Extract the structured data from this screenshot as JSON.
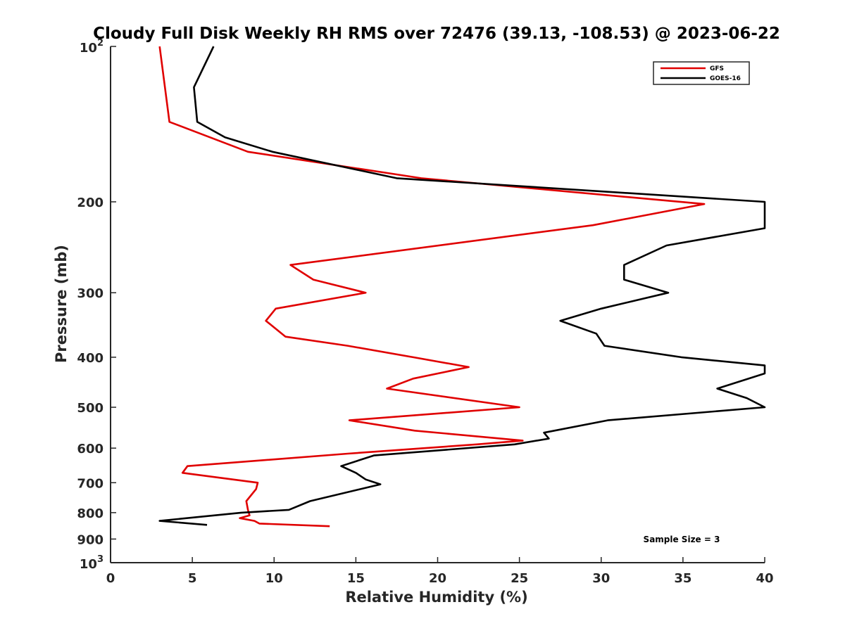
{
  "chart_data": {
    "type": "line",
    "title": "Cloudy Full Disk Weekly RH RMS over 72476 (39.13, -108.53) @ 2023-06-22",
    "xlabel": "Relative Humidity (%)",
    "ylabel": "Pressure (mb)",
    "xlim": [
      0,
      40
    ],
    "ylim": [
      100,
      1000
    ],
    "y_scale": "log",
    "y_reversed": true,
    "grid": false,
    "legend_position": "top-right",
    "x_ticks": [
      "0",
      "5",
      "10",
      "15",
      "20",
      "25",
      "30",
      "35",
      "40"
    ],
    "y_ticks": [
      {
        "value": 200,
        "label": "200"
      },
      {
        "value": 300,
        "label": "300"
      },
      {
        "value": 400,
        "label": "400"
      },
      {
        "value": 500,
        "label": "500"
      },
      {
        "value": 600,
        "label": "600"
      },
      {
        "value": 700,
        "label": "700"
      },
      {
        "value": 800,
        "label": "800"
      },
      {
        "value": 900,
        "label": "900"
      }
    ],
    "y_ticks_pow": [
      {
        "value": 100,
        "base": "10",
        "exp": "2"
      },
      {
        "value": 1000,
        "base": "10",
        "exp": "3"
      }
    ],
    "series": [
      {
        "name": "GFS",
        "color": "#e00000",
        "points": [
          [
            3.0,
            100
          ],
          [
            3.6,
            140
          ],
          [
            8.4,
            160
          ],
          [
            19.0,
            180
          ],
          [
            36.3,
            202
          ],
          [
            29.5,
            222
          ],
          [
            11.0,
            265
          ],
          [
            12.4,
            283
          ],
          [
            15.6,
            300
          ],
          [
            10.1,
            322
          ],
          [
            9.5,
            340
          ],
          [
            10.7,
            365
          ],
          [
            14.5,
            380
          ],
          [
            18.5,
            400
          ],
          [
            21.9,
            418
          ],
          [
            18.5,
            440
          ],
          [
            16.9,
            460
          ],
          [
            25.0,
            500
          ],
          [
            14.6,
            530
          ],
          [
            18.6,
            555
          ],
          [
            25.2,
            580
          ],
          [
            22.4,
            590
          ],
          [
            14.5,
            615
          ],
          [
            4.7,
            650
          ],
          [
            4.4,
            670
          ],
          [
            9.0,
            700
          ],
          [
            8.9,
            720
          ],
          [
            8.3,
            760
          ],
          [
            8.4,
            790
          ],
          [
            8.5,
            810
          ],
          [
            7.9,
            820
          ],
          [
            8.8,
            830
          ],
          [
            9.1,
            840
          ],
          [
            13.4,
            850
          ]
        ]
      },
      {
        "name": "GOES-16",
        "color": "#000000",
        "points": [
          [
            6.3,
            100
          ],
          [
            5.1,
            120
          ],
          [
            5.3,
            140
          ],
          [
            7.0,
            150
          ],
          [
            9.9,
            160
          ],
          [
            17.5,
            180
          ],
          [
            40.0,
            200
          ],
          [
            40.0,
            225
          ],
          [
            34.0,
            243
          ],
          [
            31.4,
            265
          ],
          [
            31.4,
            283
          ],
          [
            34.1,
            300
          ],
          [
            30.0,
            322
          ],
          [
            27.5,
            340
          ],
          [
            29.7,
            360
          ],
          [
            30.2,
            380
          ],
          [
            34.9,
            400
          ],
          [
            40.0,
            415
          ],
          [
            40.0,
            430
          ],
          [
            37.1,
            460
          ],
          [
            38.9,
            480
          ],
          [
            40.0,
            500
          ],
          [
            30.4,
            530
          ],
          [
            26.5,
            560
          ],
          [
            26.8,
            575
          ],
          [
            24.7,
            590
          ],
          [
            16.1,
            620
          ],
          [
            14.1,
            650
          ],
          [
            15.0,
            670
          ],
          [
            15.6,
            690
          ],
          [
            16.5,
            705
          ],
          [
            12.2,
            760
          ],
          [
            10.9,
            790
          ],
          [
            8.0,
            800
          ],
          [
            3.0,
            830
          ],
          [
            5.9,
            845
          ]
        ]
      }
    ],
    "legend": [
      {
        "label": "GFS",
        "color": "#e00000"
      },
      {
        "label": "GOES-16",
        "color": "#000000"
      }
    ],
    "annotation": "Sample Size = 3"
  }
}
